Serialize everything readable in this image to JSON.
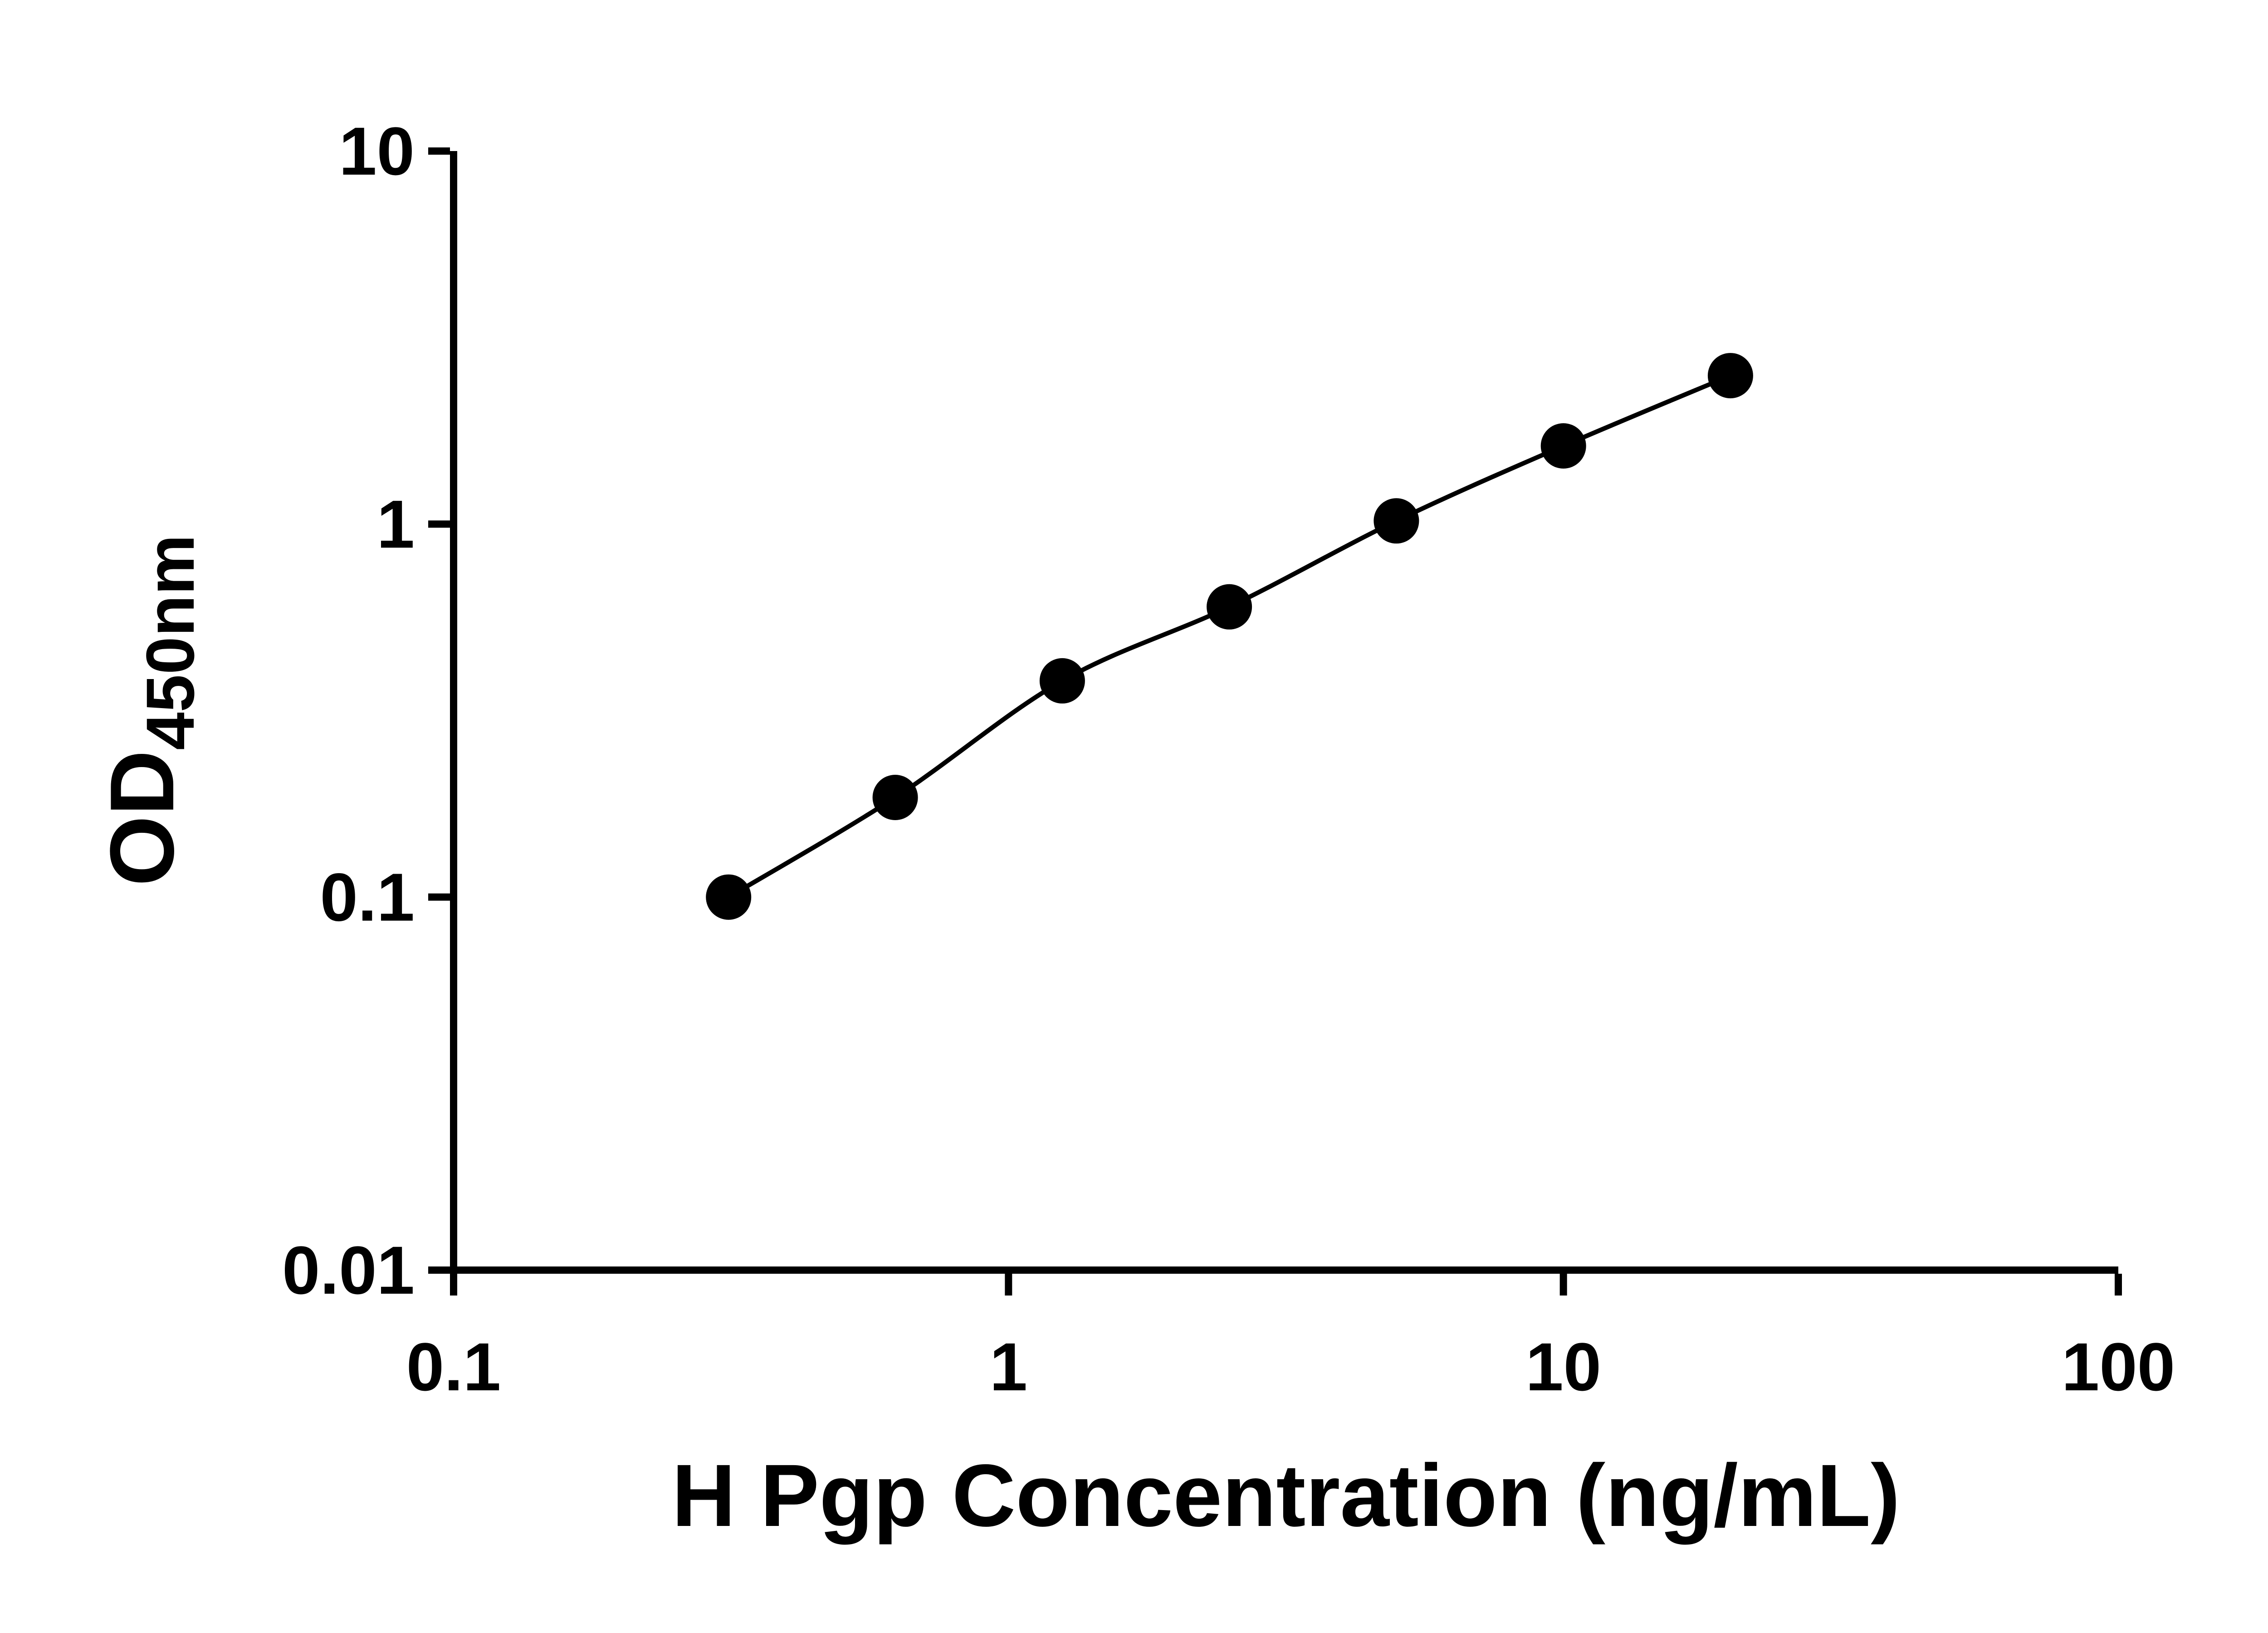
{
  "figure": {
    "background": "#ffffff"
  },
  "chart_data": {
    "type": "scatter",
    "title": "",
    "xlabel": "H Pgp Concentration (ng/mL)",
    "ylabel": "OD450nm",
    "ylabel_main": "OD",
    "ylabel_sub": "450nm",
    "x_scale": "log10",
    "y_scale": "log10",
    "xlim": [
      0.1,
      100
    ],
    "ylim": [
      0.01,
      10
    ],
    "x_ticks": [
      0.1,
      1,
      10,
      100
    ],
    "x_tick_labels": [
      "0.1",
      "1",
      "10",
      "100"
    ],
    "y_ticks": [
      0.01,
      0.1,
      1,
      10
    ],
    "y_tick_labels": [
      "0.01",
      "0.1",
      "1",
      "10"
    ],
    "grid": false,
    "legend": "none",
    "x": [
      0.313,
      0.625,
      1.25,
      2.5,
      5,
      10,
      20
    ],
    "y": [
      0.1,
      0.185,
      0.38,
      0.6,
      1.02,
      1.62,
      2.5
    ],
    "marker": "circle",
    "marker_color": "#000000",
    "line_color": "#000000",
    "axis_color": "#000000"
  }
}
